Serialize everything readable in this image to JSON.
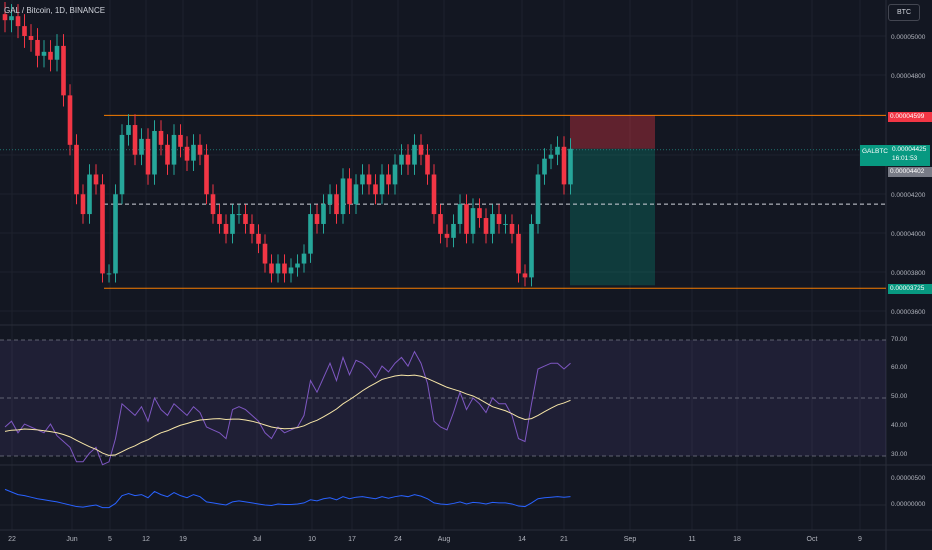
{
  "header": {
    "title": "GAL / Bitcoin, 1D, BINANCE",
    "currency_badge": "BTC"
  },
  "price_axis": {
    "ticks": [
      "0.00005000",
      "0.00004800",
      "0.00004200",
      "0.00004000",
      "0.00003800",
      "0.00003600"
    ],
    "tag_upper": "0.00004599",
    "tag_lower": "0.00003725",
    "tag_current_symbol": "GALBTC",
    "tag_current_value": "0.00004425",
    "tag_current_countdown": "16:01:53",
    "tag_gray": "0.00004402"
  },
  "rsi_axis": {
    "ticks": [
      "70.00",
      "60.00",
      "50.00",
      "40.00",
      "30.00"
    ]
  },
  "osc_axis": {
    "ticks": [
      "0.00000500",
      "0.00000000"
    ]
  },
  "time_axis": {
    "labels": [
      "22",
      "Jun",
      "5",
      "12",
      "19",
      "Jul",
      "10",
      "17",
      "24",
      "Aug",
      "14",
      "21",
      "Sep",
      "11",
      "18",
      "Oct",
      "9"
    ]
  },
  "colors": {
    "bg": "#131722",
    "up": "#26a69a",
    "down": "#f23645",
    "range_line": "#f57c00",
    "rsi": "#7e57c2",
    "rsi_ma": "#f7e6a8"
  },
  "chart_data": [
    {
      "type": "candlestick",
      "title": "GAL / Bitcoin, 1D, BINANCE",
      "ylim": [
        3.55e-05,
        5.15e-05
      ],
      "levels": {
        "range_top": 4.599e-05,
        "range_bottom": 3.725e-05,
        "mid_dashed": 4.15e-05,
        "current": 4.425e-05
      },
      "position_tool": {
        "entry": 4.43e-05,
        "stop": 4.6e-05,
        "target": 3.74e-05
      },
      "closes": [
        5.08e-05,
        5.1e-05,
        5.05e-05,
        5e-05,
        4.98e-05,
        4.9e-05,
        4.92e-05,
        4.88e-05,
        4.95e-05,
        4.7e-05,
        4.45e-05,
        4.2e-05,
        4.1e-05,
        4.3e-05,
        4.25e-05,
        3.8e-05,
        3.8e-05,
        4.2e-05,
        4.5e-05,
        4.55e-05,
        4.4e-05,
        4.48e-05,
        4.3e-05,
        4.52e-05,
        4.45e-05,
        4.35e-05,
        4.5e-05,
        4.44e-05,
        4.37e-05,
        4.45e-05,
        4.4e-05,
        4.2e-05,
        4.1e-05,
        4.05e-05,
        4e-05,
        4.1e-05,
        4.1e-05,
        4.05e-05,
        4e-05,
        3.95e-05,
        3.85e-05,
        3.8e-05,
        3.85e-05,
        3.8e-05,
        3.83e-05,
        3.85e-05,
        3.9e-05,
        4.1e-05,
        4.05e-05,
        4.15e-05,
        4.2e-05,
        4.1e-05,
        4.28e-05,
        4.15e-05,
        4.25e-05,
        4.3e-05,
        4.25e-05,
        4.2e-05,
        4.3e-05,
        4.25e-05,
        4.35e-05,
        4.4e-05,
        4.35e-05,
        4.45e-05,
        4.4e-05,
        4.3e-05,
        4.1e-05,
        4e-05,
        3.98e-05,
        4.05e-05,
        4.15e-05,
        4e-05,
        4.13e-05,
        4.08e-05,
        4e-05,
        4.1e-05,
        4.05e-05,
        4.05e-05,
        4e-05,
        3.8e-05,
        3.78e-05,
        4.05e-05,
        4.3e-05,
        4.38e-05,
        4.4e-05,
        4.44e-05,
        4.25e-05,
        4.43e-05
      ],
      "rsi": [
        40,
        42,
        38,
        41,
        40,
        39,
        38,
        41,
        37,
        35,
        33,
        28,
        28,
        31,
        33,
        27,
        28,
        36,
        48,
        46,
        44,
        47,
        42,
        50,
        46,
        44,
        48,
        46,
        44,
        47,
        45,
        40,
        39,
        38,
        36,
        46,
        47,
        46,
        44,
        42,
        38,
        36,
        40,
        38,
        39,
        40,
        44,
        56,
        52,
        57,
        62,
        56,
        64,
        58,
        63,
        62,
        60,
        57,
        61,
        59,
        62,
        64,
        61,
        66,
        62,
        55,
        42,
        40,
        39,
        45,
        52,
        46,
        50,
        48,
        45,
        50,
        48,
        48,
        44,
        36,
        35,
        48,
        60,
        61,
        62,
        62,
        60,
        62
      ],
      "rsi_ma": [
        38.5,
        38.9,
        39.0,
        39.3,
        39.2,
        39.0,
        38.7,
        38.4,
        38.0,
        37.4,
        36.6,
        35.4,
        34.3,
        33.2,
        32.3,
        31.0,
        30.2,
        30.4,
        31.5,
        32.6,
        33.5,
        34.7,
        35.6,
        36.9,
        38.0,
        38.7,
        39.7,
        40.6,
        41.2,
        41.9,
        42.4,
        42.6,
        42.8,
        42.9,
        42.6,
        42.7,
        42.7,
        42.4,
        42.0,
        41.4,
        40.7,
        40.0,
        39.6,
        39.4,
        39.5,
        39.8,
        40.4,
        41.5,
        42.3,
        43.5,
        44.8,
        46.2,
        48.0,
        49.4,
        50.9,
        52.5,
        53.9,
        55.1,
        56.4,
        57.0,
        57.6,
        57.9,
        57.7,
        57.9,
        57.5,
        56.7,
        55.7,
        54.7,
        53.7,
        53.0,
        52.3,
        51.4,
        50.7,
        49.6,
        48.3,
        47.0,
        46.3,
        45.6,
        44.6,
        43.4,
        42.6,
        42.9,
        44.0,
        45.3,
        46.5,
        47.6,
        48.3,
        49.2
      ],
      "osc": [
        3e-06,
        2.5e-06,
        2e-06,
        1.8e-06,
        1.5e-06,
        1.2e-06,
        1e-06,
        8e-07,
        6e-07,
        3e-07,
        0.0,
        -3e-07,
        -4e-07,
        -2e-07,
        0.0,
        -5e-07,
        -5e-07,
        3e-07,
        1.8e-06,
        2.2e-06,
        1.8e-06,
        2e-06,
        1.4e-06,
        2.6e-06,
        2e-06,
        1.6e-06,
        2.4e-06,
        1.8e-06,
        1.4e-06,
        2e-06,
        1.6e-06,
        6e-07,
        4e-07,
        2e-07,
        0.0,
        6e-07,
        8e-07,
        6e-07,
        4e-07,
        2e-07,
        0.0,
        -1e-07,
        2e-07,
        1e-07,
        1e-07,
        2e-07,
        4e-07,
        1e-06,
        8e-07,
        1.2e-06,
        1.4e-06,
        1e-06,
        1.6e-06,
        1.2e-06,
        1.5e-06,
        1.6e-06,
        1.4e-06,
        1.2e-06,
        1.6e-06,
        1.3e-06,
        1.6e-06,
        1.8e-06,
        1.6e-06,
        2e-06,
        1.7e-06,
        1.2e-06,
        4e-07,
        2e-07,
        1e-07,
        3e-07,
        6e-07,
        2e-07,
        5e-07,
        4e-07,
        2e-07,
        5e-07,
        4e-07,
        4e-07,
        2e-07,
        -2e-07,
        -3e-07,
        4e-07,
        1.2e-06,
        1.4e-06,
        1.5e-06,
        1.6e-06,
        1.5e-06,
        1.6e-06
      ]
    }
  ]
}
